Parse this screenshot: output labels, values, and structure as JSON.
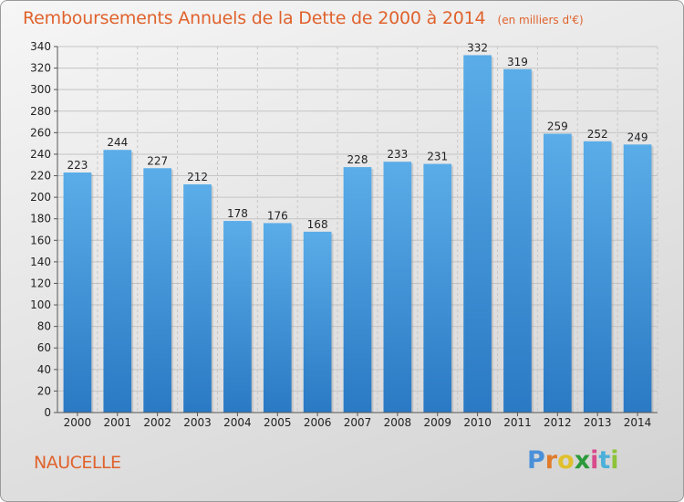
{
  "title": "Remboursements Annuels de la Dette de 2000 à 2014",
  "subtitle": "(en milliers d'€)",
  "commune": "NAUCELLE",
  "logo": {
    "letters": [
      "P",
      "r",
      "o",
      "x",
      "i",
      "t",
      "i"
    ],
    "colors": [
      "#4a90d9",
      "#e07b2c",
      "#e0c02c",
      "#2c9a3a",
      "#d94a8c",
      "#4ab0d9",
      "#8cc43a"
    ]
  },
  "colors": {
    "bar_top": "#5aade8",
    "bar_bottom": "#2a79c4",
    "accent": "#e0622c"
  },
  "chart_data": {
    "type": "bar",
    "title": "Remboursements Annuels de la Dette de 2000 à 2014",
    "xlabel": "",
    "ylabel": "",
    "categories": [
      "2000",
      "2001",
      "2002",
      "2003",
      "2004",
      "2005",
      "2006",
      "2007",
      "2008",
      "2009",
      "2010",
      "2011",
      "2012",
      "2013",
      "2014"
    ],
    "values": [
      223,
      244,
      227,
      212,
      178,
      176,
      168,
      228,
      233,
      231,
      332,
      319,
      259,
      252,
      249
    ],
    "ylim": [
      0,
      340
    ],
    "yticks": [
      0,
      20,
      40,
      60,
      80,
      100,
      120,
      140,
      160,
      180,
      200,
      220,
      240,
      260,
      280,
      300,
      320,
      340
    ],
    "grid": true
  }
}
